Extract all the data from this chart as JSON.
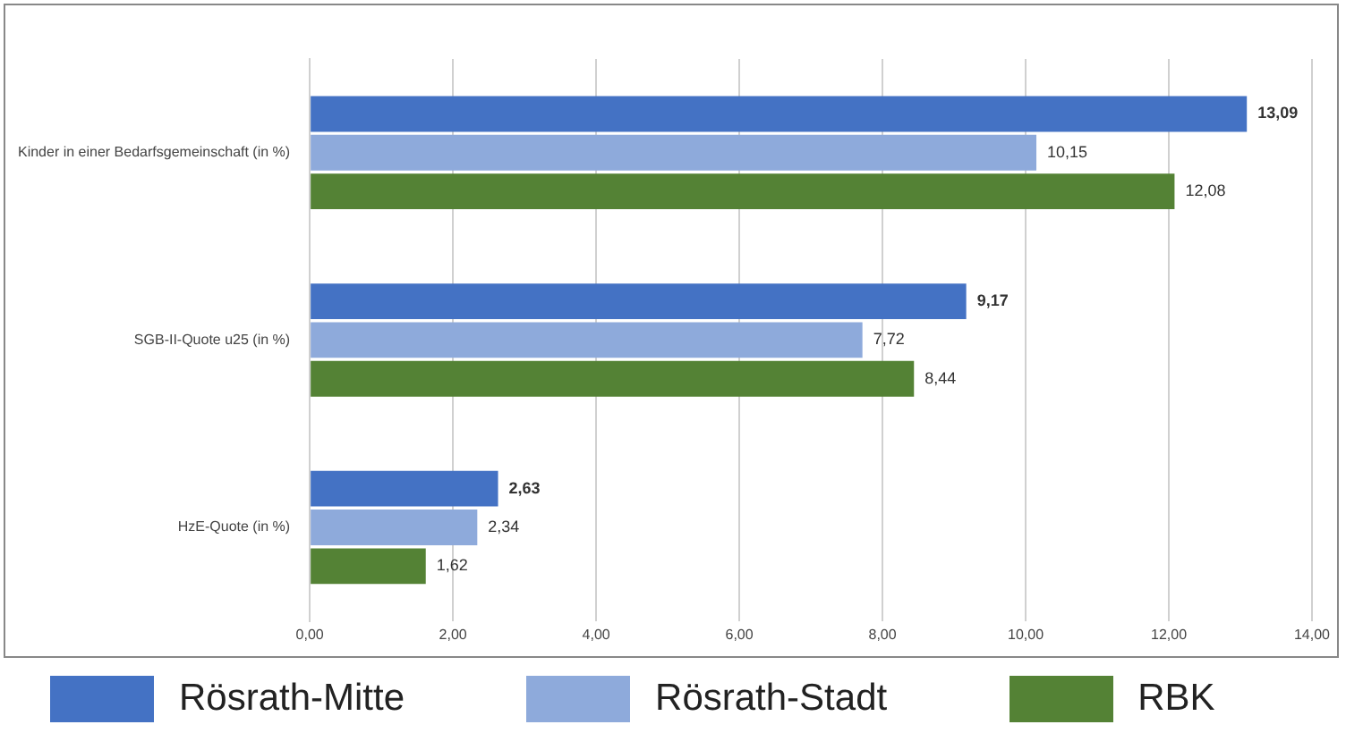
{
  "chart_data": {
    "type": "bar",
    "orientation": "horizontal",
    "categories": [
      "Kinder in einer Bedarfsgemeinschaft (in %)",
      "SGB-II-Quote u25 (in %)",
      "HzE-Quote (in %)"
    ],
    "series": [
      {
        "name": "Rösrath-Mitte",
        "color": "#4472c4",
        "values": [
          13.09,
          9.17,
          2.63
        ],
        "value_labels": [
          "13,09",
          "9,17",
          "2,63"
        ]
      },
      {
        "name": "Rösrath-Stadt",
        "color": "#8eaadb",
        "values": [
          10.15,
          7.72,
          2.34
        ],
        "value_labels": [
          "10,15",
          "7,72",
          "2,34"
        ]
      },
      {
        "name": "RBK",
        "color": "#548235",
        "values": [
          12.08,
          8.44,
          1.62
        ],
        "value_labels": [
          "12,08",
          "8,44",
          "1,62"
        ]
      }
    ],
    "xlim": [
      0,
      14
    ],
    "xticks": [
      {
        "value": 0,
        "label": "0,00"
      },
      {
        "value": 2,
        "label": "2,00"
      },
      {
        "value": 4,
        "label": "4,00"
      },
      {
        "value": 6,
        "label": "6,00"
      },
      {
        "value": 8,
        "label": "8,00"
      },
      {
        "value": 10,
        "label": "10,00"
      },
      {
        "value": 12,
        "label": "12,00"
      },
      {
        "value": 14,
        "label": "14,00"
      }
    ],
    "grid": "x",
    "legend": "bottom"
  }
}
